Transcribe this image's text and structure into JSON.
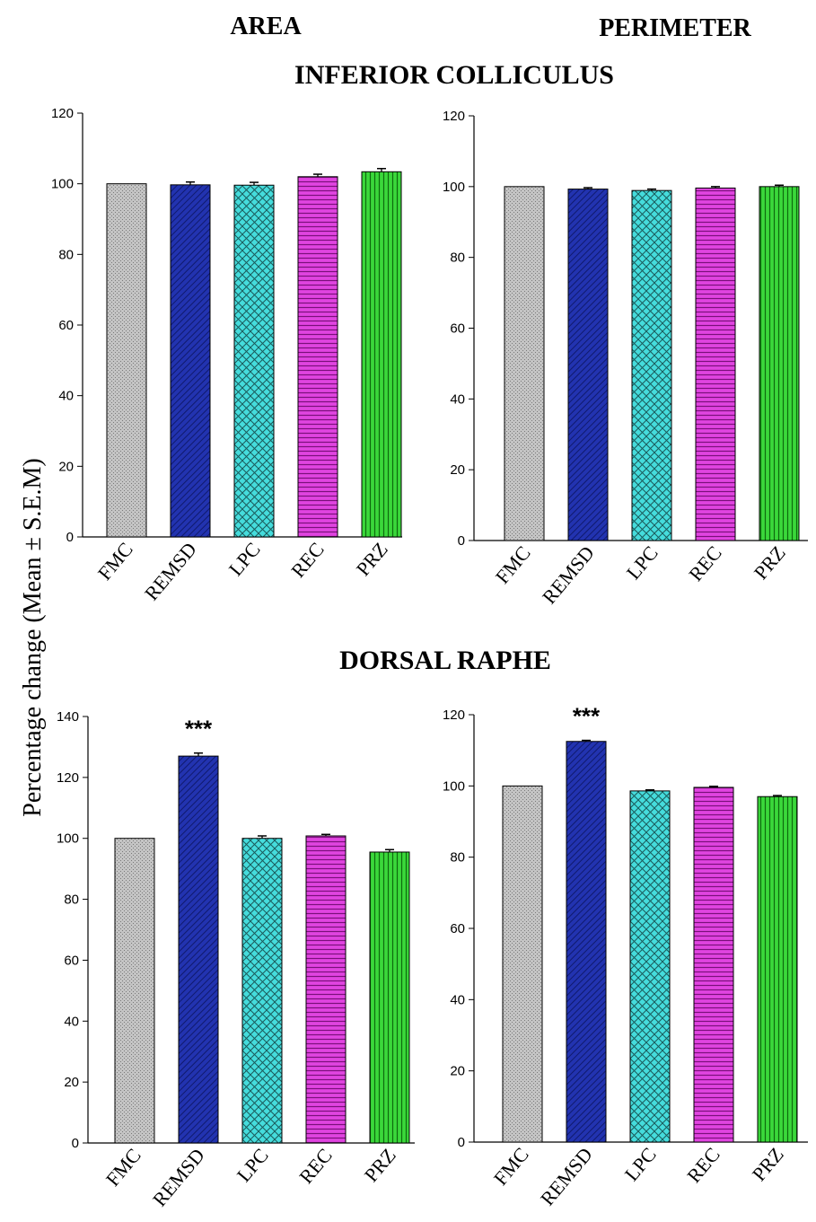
{
  "headers": {
    "col_left": "AREA",
    "col_right": "PERIMETER",
    "row_top": "INFERIOR COLLICULUS",
    "row_bottom": "DORSAL RAPHE"
  },
  "shared_ylabel": "Percentage change (Mean ± S.E.M)",
  "colors": {
    "FMC": "#b8b8b8",
    "REMSD": "#1f2ea8",
    "LPC": "#3fd9d9",
    "REC": "#d62bd6",
    "PRZ": "#2fd02f"
  },
  "chart_data": [
    {
      "id": "ic-area",
      "type": "bar",
      "categories": [
        "FMC",
        "REMSD",
        "LPC",
        "REC",
        "PRZ"
      ],
      "values": [
        100,
        99.7,
        99.6,
        102,
        103.4
      ],
      "errors": [
        0,
        0.8,
        0.8,
        0.7,
        0.9
      ],
      "significance": [
        "",
        "",
        "",
        "",
        ""
      ],
      "ylim": [
        0,
        120
      ],
      "yticks": [
        "0",
        "20",
        "40",
        "60",
        "80",
        "100",
        "120"
      ],
      "grid": false
    },
    {
      "id": "ic-perimeter",
      "type": "bar",
      "categories": [
        "FMC",
        "REMSD",
        "LPC",
        "REC",
        "PRZ"
      ],
      "values": [
        100,
        99.3,
        98.9,
        99.6,
        100
      ],
      "errors": [
        0,
        0.4,
        0.4,
        0.4,
        0.4
      ],
      "significance": [
        "",
        "",
        "",
        "",
        ""
      ],
      "ylim": [
        0,
        120
      ],
      "yticks": [
        "0",
        "20",
        "40",
        "60",
        "80",
        "100",
        "120"
      ],
      "grid": false
    },
    {
      "id": "dr-area",
      "type": "bar",
      "categories": [
        "FMC",
        "REMSD",
        "LPC",
        "REC",
        "PRZ"
      ],
      "values": [
        100,
        127,
        100,
        100.8,
        95.5
      ],
      "errors": [
        0,
        1.0,
        0.8,
        0.5,
        0.8
      ],
      "significance": [
        "",
        "***",
        "",
        "",
        ""
      ],
      "ylim": [
        0,
        140
      ],
      "yticks": [
        "0",
        "20",
        "40",
        "60",
        "80",
        "100",
        "120",
        "140"
      ],
      "grid": false
    },
    {
      "id": "dr-perimeter",
      "type": "bar",
      "categories": [
        "FMC",
        "REMSD",
        "LPC",
        "REC",
        "PRZ"
      ],
      "values": [
        100,
        112.5,
        98.6,
        99.6,
        97
      ],
      "errors": [
        0,
        0.3,
        0.3,
        0.3,
        0.3
      ],
      "significance": [
        "",
        "***",
        "",
        "",
        ""
      ],
      "ylim": [
        0,
        120
      ],
      "yticks": [
        "0",
        "20",
        "40",
        "60",
        "80",
        "100",
        "120"
      ],
      "grid": false
    }
  ]
}
